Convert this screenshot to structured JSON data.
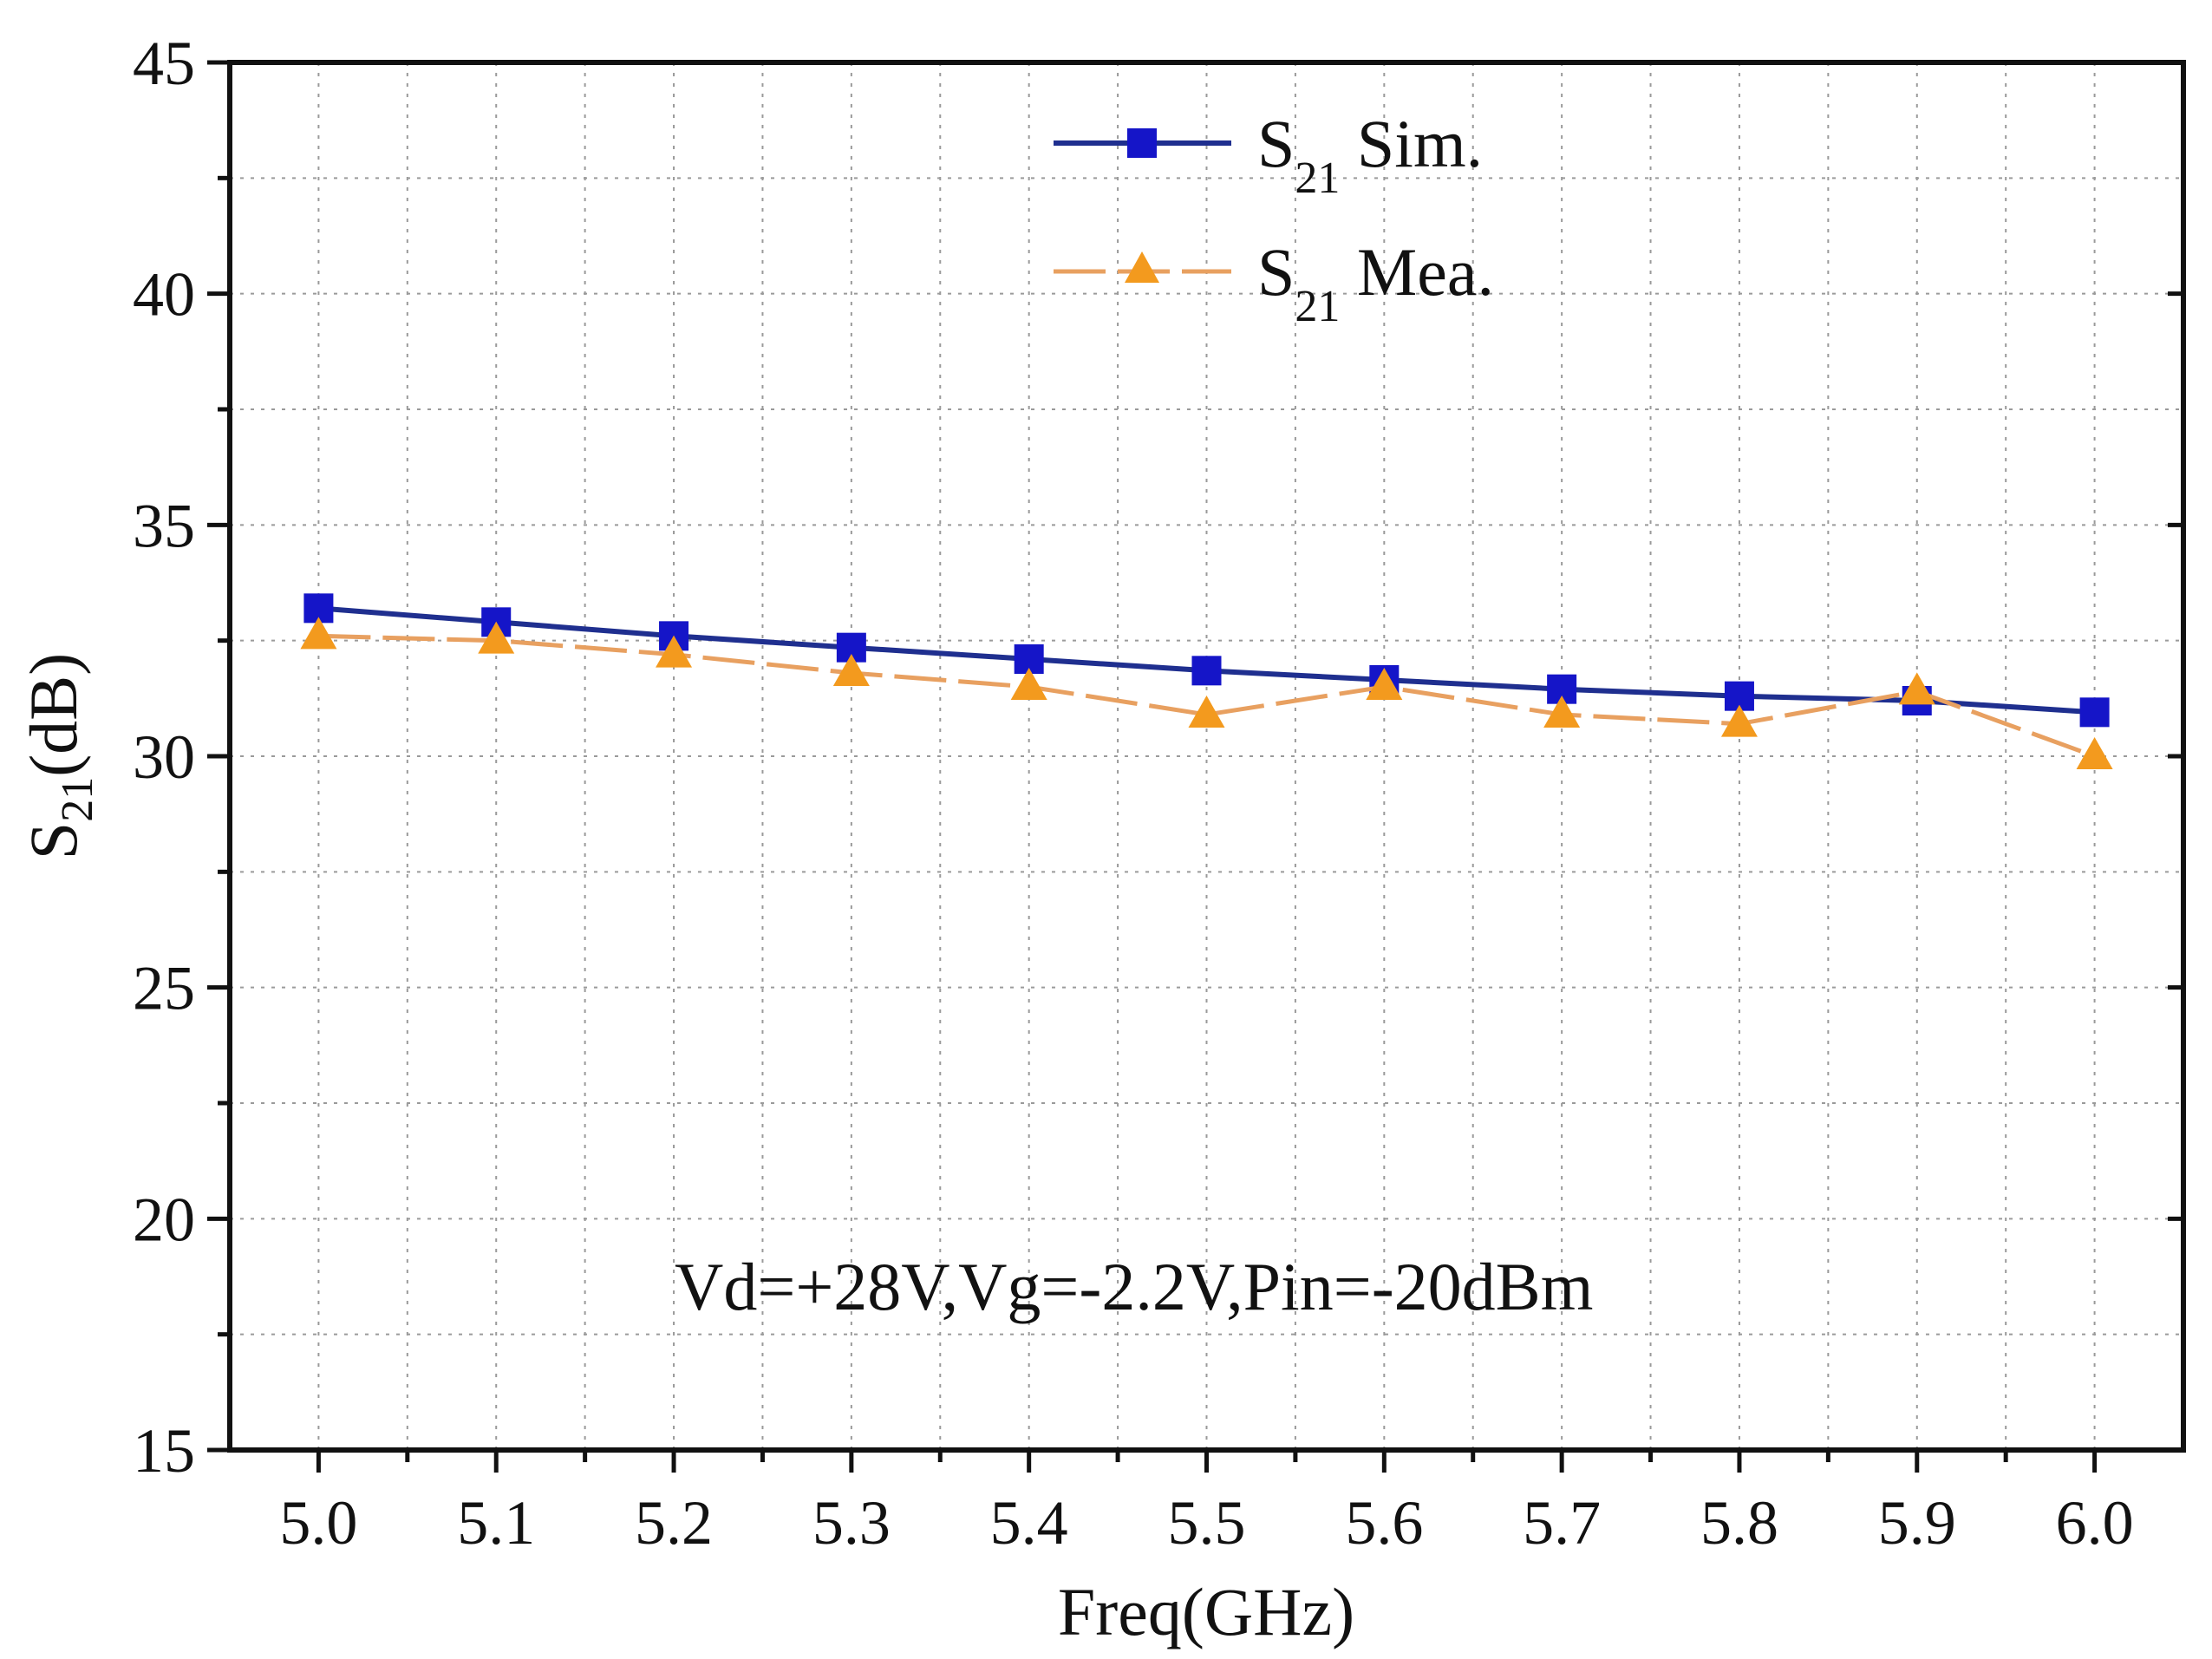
{
  "chart_data": {
    "type": "line",
    "x": [
      5.0,
      5.1,
      5.2,
      5.3,
      5.4,
      5.5,
      5.6,
      5.7,
      5.8,
      5.9,
      6.0
    ],
    "xticks": [
      "5.0",
      "5.1",
      "5.2",
      "5.3",
      "5.4",
      "5.5",
      "5.6",
      "5.7",
      "5.8",
      "5.9",
      "6.0"
    ],
    "yticks": [
      "15",
      "20",
      "25",
      "30",
      "35",
      "40",
      "45"
    ],
    "xlim": [
      4.95,
      6.05
    ],
    "ylim": [
      15,
      45
    ],
    "series": [
      {
        "name_main": "S",
        "name_sub": "21",
        "name_rest": " Sim.",
        "color": "#1f2f8f",
        "marker_color": "#1515c8",
        "marker": "square",
        "values": [
          33.2,
          32.9,
          32.6,
          32.35,
          32.1,
          31.85,
          31.65,
          31.45,
          31.3,
          31.2,
          30.95
        ]
      },
      {
        "name_main": "S",
        "name_sub": "21",
        "name_rest": " Mea.",
        "color": "#e8a060",
        "marker_color": "#f39a1e",
        "marker": "triangle",
        "values": [
          32.6,
          32.5,
          32.2,
          31.8,
          31.5,
          30.9,
          31.5,
          30.9,
          30.7,
          31.4,
          30.0
        ]
      }
    ],
    "xlabel": "Freq(GHz)",
    "ylabel_main": "S",
    "ylabel_sub": "21",
    "ylabel_rest": "(dB)",
    "annotation": "Vd=+28V,Vg=-2.2V,Pin=-20dBm",
    "grid": true,
    "legend_position": "top-center"
  }
}
